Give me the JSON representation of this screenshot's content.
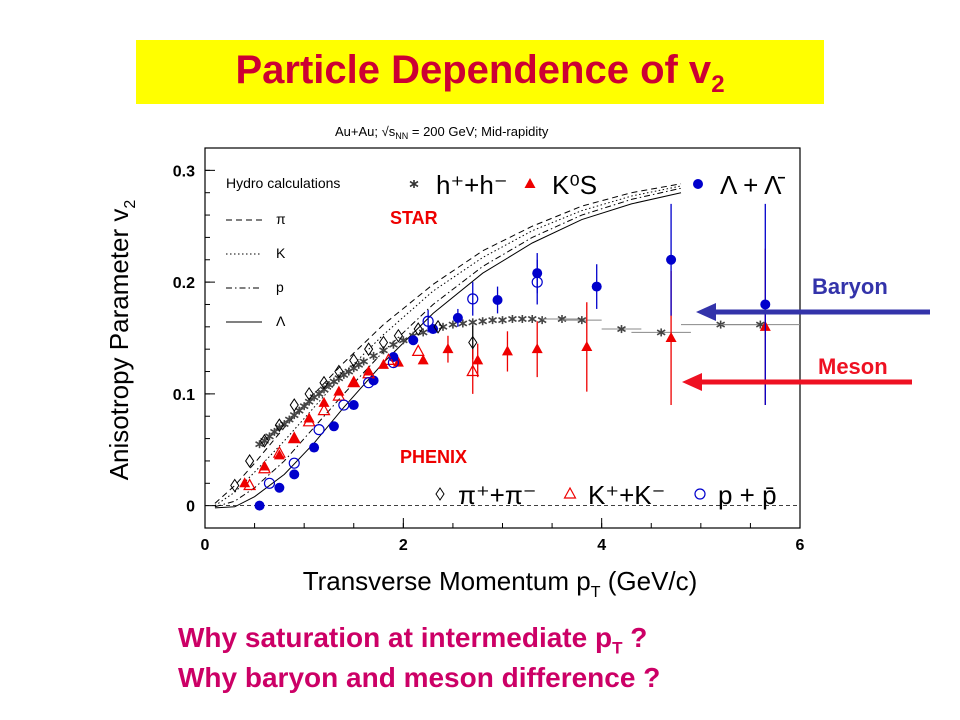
{
  "header": {
    "title_main": "Particle Dependence of v",
    "title_sub": "2",
    "title_color": "#cc0033",
    "title_bg": "#ffff00"
  },
  "questions": {
    "q1_main": "Why saturation at intermediate p",
    "q1_sub": "T",
    "q1_end": " ?",
    "q2": "Why baryon and meson difference ?",
    "color": "#cc0066"
  },
  "annotations": {
    "baryon": "Baryon",
    "meson": "Meson",
    "baryon_color": "#3333aa",
    "meson_color": "#ee1122",
    "star": "STAR",
    "phenix": "PHENIX"
  },
  "chart_data": {
    "type": "scatter",
    "subtitle_a": "Au+Au; ",
    "subtitle_s": "s",
    "subtitle_nn": "NN",
    "subtitle_b": " = 200 GeV; Mid-rapidity",
    "xlabel_main": "Transverse Momentum p",
    "xlabel_sub": "T",
    "xlabel_end": " (GeV/c)",
    "ylabel_main": "Anisotropy Parameter v",
    "ylabel_sub": "2",
    "xlim": [
      0,
      6
    ],
    "ylim": [
      -0.02,
      0.32
    ],
    "xticks": [
      "0",
      "2",
      "4",
      "6"
    ],
    "xtick_values": [
      0,
      2,
      4,
      6
    ],
    "yticks": [
      "0",
      "0.1",
      "0.2",
      "0.3"
    ],
    "ytick_values": [
      0,
      0.1,
      0.2,
      0.3
    ],
    "hydro_legend": {
      "title": "Hydro calculations",
      "items": [
        {
          "label": "π",
          "dash": "6,4"
        },
        {
          "label": "K",
          "dash": "1.5,2.5"
        },
        {
          "label": "p",
          "dash": "6,3,1.5,3"
        },
        {
          "label": "Λ",
          "dash": ""
        }
      ]
    },
    "star_legend": [
      {
        "label": "h⁺+h⁻",
        "marker": "star",
        "color": "#333333"
      },
      {
        "label": "K⁰S",
        "marker": "triangle-filled",
        "color": "#ee0000"
      },
      {
        "label": "Λ + Λ̄",
        "marker": "circle-filled",
        "color": "#0000cc"
      }
    ],
    "phenix_legend": [
      {
        "label": "π⁺+π⁻",
        "marker": "diamond-open",
        "color": "#000000"
      },
      {
        "label": "K⁺+K⁻",
        "marker": "triangle-open",
        "color": "#ee0000"
      },
      {
        "label": "p + p̄",
        "marker": "circle-open",
        "color": "#0000cc"
      }
    ],
    "series": [
      {
        "name": "h⁺+h⁻",
        "marker": "star",
        "color": "#444444",
        "x": [
          0.55,
          0.6,
          0.65,
          0.7,
          0.75,
          0.8,
          0.85,
          0.9,
          0.95,
          1.0,
          1.05,
          1.1,
          1.15,
          1.2,
          1.25,
          1.3,
          1.35,
          1.4,
          1.45,
          1.5,
          1.55,
          1.6,
          1.7,
          1.8,
          1.9,
          2.0,
          2.1,
          2.2,
          2.3,
          2.4,
          2.5,
          2.6,
          2.7,
          2.8,
          2.9,
          3.0,
          3.1,
          3.2,
          3.3,
          3.4,
          3.6,
          3.8,
          4.2,
          4.6,
          5.2,
          5.6
        ],
        "y": [
          0.055,
          0.058,
          0.062,
          0.066,
          0.07,
          0.073,
          0.077,
          0.081,
          0.085,
          0.089,
          0.093,
          0.097,
          0.1,
          0.104,
          0.108,
          0.111,
          0.114,
          0.117,
          0.12,
          0.123,
          0.126,
          0.129,
          0.134,
          0.139,
          0.144,
          0.148,
          0.152,
          0.155,
          0.158,
          0.16,
          0.162,
          0.163,
          0.164,
          0.165,
          0.166,
          0.166,
          0.167,
          0.167,
          0.167,
          0.166,
          0.167,
          0.166,
          0.158,
          0.155,
          0.162,
          0.162
        ],
        "y_err": [
          0,
          0,
          0,
          0,
          0,
          0,
          0,
          0,
          0,
          0,
          0,
          0,
          0,
          0,
          0,
          0,
          0,
          0,
          0,
          0,
          0,
          0,
          0,
          0,
          0,
          0,
          0,
          0,
          0,
          0,
          0,
          0,
          0,
          0,
          0,
          0,
          0,
          0,
          0,
          0,
          0,
          0,
          0,
          0,
          0,
          0
        ],
        "x_err": [
          0,
          0,
          0,
          0,
          0,
          0,
          0,
          0,
          0,
          0,
          0,
          0,
          0,
          0,
          0,
          0,
          0,
          0,
          0,
          0,
          0,
          0,
          0,
          0,
          0,
          0,
          0,
          0,
          0,
          0,
          0,
          0,
          0,
          0,
          0,
          0,
          0,
          0,
          0,
          0,
          0.2,
          0.2,
          0.2,
          0.3,
          0.4,
          0.4
        ]
      },
      {
        "name": "K⁰S",
        "marker": "triangle-filled",
        "color": "#ee0000",
        "x": [
          0.4,
          0.6,
          0.75,
          0.9,
          1.05,
          1.2,
          1.35,
          1.5,
          1.65,
          1.8,
          1.95,
          2.2,
          2.45,
          2.75,
          3.05,
          3.35,
          3.85,
          4.7,
          5.65
        ],
        "y": [
          0.02,
          0.035,
          0.045,
          0.06,
          0.078,
          0.092,
          0.102,
          0.11,
          0.12,
          0.126,
          0.128,
          0.13,
          0.14,
          0.13,
          0.138,
          0.14,
          0.142,
          0.15,
          0.16
        ],
        "y_err": [
          0,
          0,
          0,
          0,
          0,
          0,
          0,
          0,
          0,
          0,
          0,
          0,
          0.012,
          0.015,
          0.018,
          0.025,
          0.04,
          0.06,
          0.07
        ]
      },
      {
        "name": "Λ + Λ̄",
        "marker": "circle-filled",
        "color": "#0000cc",
        "x": [
          0.55,
          0.75,
          0.9,
          1.1,
          1.3,
          1.5,
          1.7,
          1.9,
          2.1,
          2.3,
          2.55,
          2.95,
          3.35,
          3.95,
          4.7,
          5.65
        ],
        "y": [
          0.0,
          0.016,
          0.028,
          0.052,
          0.071,
          0.09,
          0.112,
          0.133,
          0.148,
          0.158,
          0.168,
          0.184,
          0.208,
          0.196,
          0.22,
          0.18
        ],
        "y_err": [
          0,
          0,
          0,
          0,
          0,
          0,
          0,
          0,
          0,
          0,
          0.008,
          0.012,
          0.018,
          0.02,
          0.05,
          0.09
        ]
      },
      {
        "name": "π⁺+π⁻",
        "marker": "diamond-open",
        "color": "#000000",
        "x": [
          0.3,
          0.45,
          0.6,
          0.75,
          0.9,
          1.05,
          1.2,
          1.35,
          1.5,
          1.65,
          1.8,
          1.95,
          2.15,
          2.35,
          2.7
        ],
        "y": [
          0.018,
          0.04,
          0.058,
          0.072,
          0.09,
          0.1,
          0.11,
          0.12,
          0.13,
          0.14,
          0.146,
          0.152,
          0.158,
          0.16,
          0.146
        ],
        "y_err": [
          0,
          0,
          0,
          0,
          0,
          0,
          0,
          0,
          0,
          0,
          0,
          0,
          0,
          0,
          0.015
        ]
      },
      {
        "name": "K⁺+K⁻",
        "marker": "triangle-open",
        "color": "#ee0000",
        "x": [
          0.45,
          0.6,
          0.75,
          0.9,
          1.05,
          1.2,
          1.35,
          1.5,
          1.65,
          1.85,
          2.15,
          2.7
        ],
        "y": [
          0.018,
          0.033,
          0.047,
          0.06,
          0.075,
          0.085,
          0.098,
          0.11,
          0.118,
          0.13,
          0.138,
          0.12
        ],
        "y_err": [
          0,
          0,
          0,
          0,
          0,
          0,
          0,
          0,
          0,
          0,
          0,
          0.02
        ]
      },
      {
        "name": "p + p̄",
        "marker": "circle-open",
        "color": "#0000cc",
        "x": [
          0.65,
          0.9,
          1.15,
          1.4,
          1.65,
          1.9,
          2.25,
          2.7,
          3.35
        ],
        "y": [
          0.02,
          0.038,
          0.068,
          0.09,
          0.11,
          0.128,
          0.165,
          0.185,
          0.2
        ],
        "y_err": [
          0,
          0,
          0,
          0,
          0,
          0,
          0.01,
          0.015,
          0.02
        ]
      }
    ],
    "hydro_curves": [
      {
        "label": "π",
        "dash": "6,4",
        "x": [
          0.1,
          0.3,
          0.5,
          0.8,
          1.1,
          1.4,
          1.8,
          2.3,
          2.8,
          3.3,
          3.8,
          4.3,
          4.8
        ],
        "y": [
          0.002,
          0.018,
          0.038,
          0.07,
          0.1,
          0.128,
          0.162,
          0.198,
          0.228,
          0.25,
          0.268,
          0.28,
          0.288
        ]
      },
      {
        "label": "K",
        "dash": "1.5,2.5",
        "x": [
          0.1,
          0.3,
          0.5,
          0.8,
          1.1,
          1.4,
          1.8,
          2.3,
          2.8,
          3.3,
          3.8,
          4.3,
          4.8
        ],
        "y": [
          0.0,
          0.012,
          0.03,
          0.058,
          0.088,
          0.118,
          0.153,
          0.192,
          0.222,
          0.246,
          0.264,
          0.277,
          0.286
        ]
      },
      {
        "label": "p",
        "dash": "6,3,1.5,3",
        "x": [
          0.1,
          0.3,
          0.5,
          0.8,
          1.1,
          1.4,
          1.8,
          2.3,
          2.8,
          3.3,
          3.8,
          4.3,
          4.8
        ],
        "y": [
          -0.001,
          0.004,
          0.016,
          0.04,
          0.07,
          0.1,
          0.138,
          0.18,
          0.214,
          0.24,
          0.26,
          0.274,
          0.284
        ]
      },
      {
        "label": "Λ",
        "dash": "",
        "x": [
          0.1,
          0.3,
          0.5,
          0.8,
          1.1,
          1.4,
          1.8,
          2.3,
          2.8,
          3.3,
          3.8,
          4.3,
          4.8
        ],
        "y": [
          -0.002,
          -0.001,
          0.008,
          0.028,
          0.056,
          0.088,
          0.128,
          0.172,
          0.208,
          0.235,
          0.256,
          0.27,
          0.28
        ]
      }
    ]
  }
}
